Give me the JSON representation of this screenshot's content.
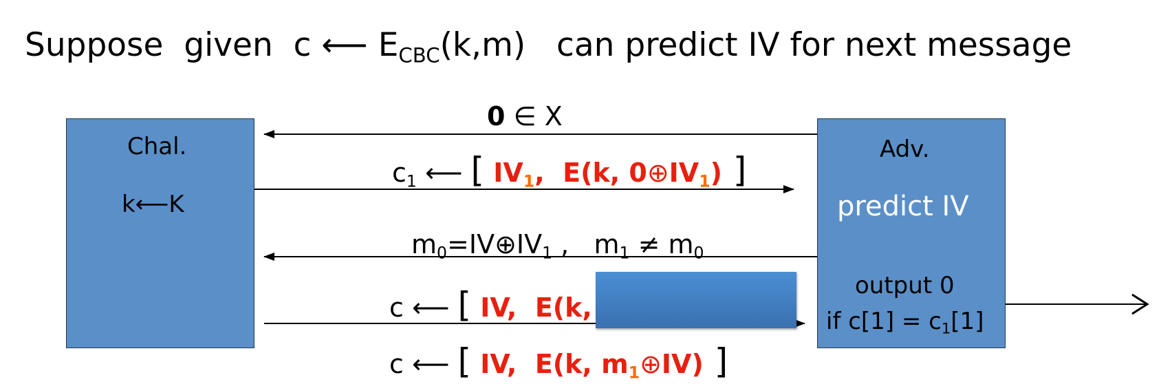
{
  "title": {
    "prefix": "Suppose  given  c ⟵ E",
    "sub": "CBC",
    "suffix": "(k,m)   can predict IV for next message"
  },
  "challenger": {
    "name": "Chal.",
    "key": "k⟵K"
  },
  "adversary": {
    "name": "Adv.",
    "action": "predict IV",
    "output": "output 0",
    "cond_prefix": "if c[1] = c",
    "cond_sub": "1",
    "cond_suffix": "[1]"
  },
  "msg1": {
    "bold": "0",
    "rest": " ∈ X"
  },
  "msg2": {
    "c": "c",
    "c_sub": "1",
    "arrow": " ⟵ ",
    "lb": "[",
    "iv": " IV",
    "iv_sub": "1",
    "comma": ",  E(k, 0",
    "xor": "⊕",
    "iv2": "IV",
    "iv2_sub": "1",
    "close": ")",
    "rb": " ]"
  },
  "msg3": {
    "m0": "m",
    "m0_sub": "0",
    "eq": "=IV",
    "xor": "⊕",
    "iv1": "IV",
    "iv1_sub": "1",
    "sep": " ,   m",
    "m1_sub": "1",
    "neq": " ≠ m",
    "m0b_sub": "0"
  },
  "msg4": {
    "c": "c ⟵ ",
    "lb": "[",
    "iv": " IV,  E(k, "
  },
  "msg5": {
    "c": "c ⟵ ",
    "lb": "[",
    "iv": " IV,  E(k, m",
    "m_sub": "1",
    "xor": "⊕",
    "iv2": "IV)",
    "rb": " ]"
  },
  "colors": {
    "box": "#5b8fc8",
    "red": "#e8200f",
    "orange": "#ff6a00",
    "mask": "#4b8fd6"
  }
}
